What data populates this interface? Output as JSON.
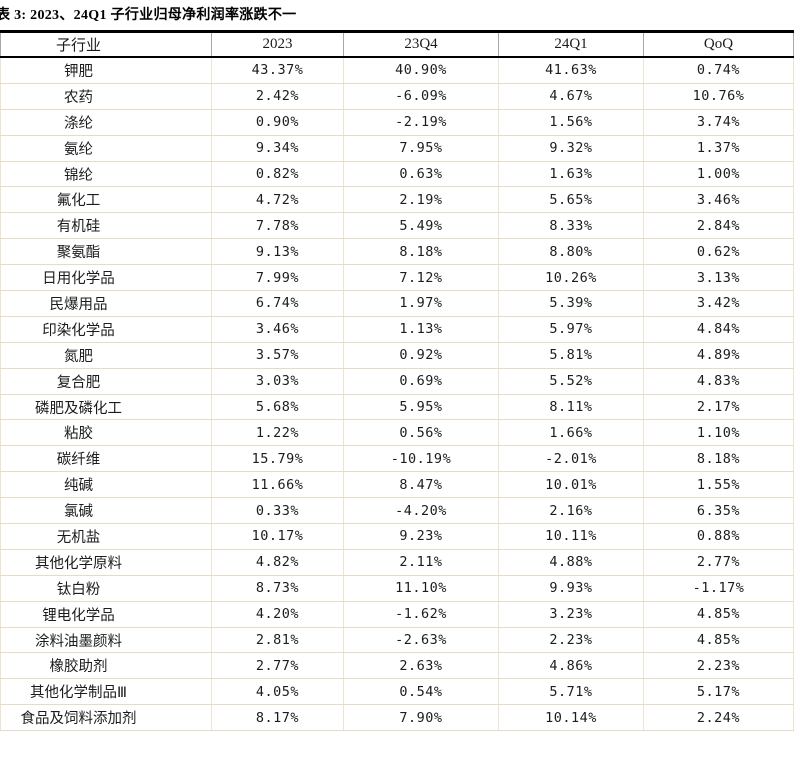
{
  "title": "表 3: 2023、24Q1 子行业归母净利润率涨跌不一",
  "colors": {
    "heavy_border": "#000000",
    "row_divider": "#e6dcc5",
    "column_divider": "#ece3d0",
    "text": "#1c1c1c"
  },
  "table": {
    "columns": [
      "子行业",
      "2023",
      "23Q4",
      "24Q1",
      "QoQ"
    ],
    "rows": [
      [
        "钾肥",
        "43.37%",
        "40.90%",
        "41.63%",
        "0.74%"
      ],
      [
        "农药",
        "2.42%",
        "-6.09%",
        "4.67%",
        "10.76%"
      ],
      [
        "涤纶",
        "0.90%",
        "-2.19%",
        "1.56%",
        "3.74%"
      ],
      [
        "氨纶",
        "9.34%",
        "7.95%",
        "9.32%",
        "1.37%"
      ],
      [
        "锦纶",
        "0.82%",
        "0.63%",
        "1.63%",
        "1.00%"
      ],
      [
        "氟化工",
        "4.72%",
        "2.19%",
        "5.65%",
        "3.46%"
      ],
      [
        "有机硅",
        "7.78%",
        "5.49%",
        "8.33%",
        "2.84%"
      ],
      [
        "聚氨酯",
        "9.13%",
        "8.18%",
        "8.80%",
        "0.62%"
      ],
      [
        "日用化学品",
        "7.99%",
        "7.12%",
        "10.26%",
        "3.13%"
      ],
      [
        "民爆用品",
        "6.74%",
        "1.97%",
        "5.39%",
        "3.42%"
      ],
      [
        "印染化学品",
        "3.46%",
        "1.13%",
        "5.97%",
        "4.84%"
      ],
      [
        "氮肥",
        "3.57%",
        "0.92%",
        "5.81%",
        "4.89%"
      ],
      [
        "复合肥",
        "3.03%",
        "0.69%",
        "5.52%",
        "4.83%"
      ],
      [
        "磷肥及磷化工",
        "5.68%",
        "5.95%",
        "8.11%",
        "2.17%"
      ],
      [
        "粘胶",
        "1.22%",
        "0.56%",
        "1.66%",
        "1.10%"
      ],
      [
        "碳纤维",
        "15.79%",
        "-10.19%",
        "-2.01%",
        "8.18%"
      ],
      [
        "纯碱",
        "11.66%",
        "8.47%",
        "10.01%",
        "1.55%"
      ],
      [
        "氯碱",
        "0.33%",
        "-4.20%",
        "2.16%",
        "6.35%"
      ],
      [
        "无机盐",
        "10.17%",
        "9.23%",
        "10.11%",
        "0.88%"
      ],
      [
        "其他化学原料",
        "4.82%",
        "2.11%",
        "4.88%",
        "2.77%"
      ],
      [
        "钛白粉",
        "8.73%",
        "11.10%",
        "9.93%",
        "-1.17%"
      ],
      [
        "锂电化学品",
        "4.20%",
        "-1.62%",
        "3.23%",
        "4.85%"
      ],
      [
        "涂料油墨颜料",
        "2.81%",
        "-2.63%",
        "2.23%",
        "4.85%"
      ],
      [
        "橡胶助剂",
        "2.77%",
        "2.63%",
        "4.86%",
        "2.23%"
      ],
      [
        "其他化学制品Ⅲ",
        "4.05%",
        "0.54%",
        "5.71%",
        "5.17%"
      ],
      [
        "食品及饲料添加剂",
        "8.17%",
        "7.90%",
        "10.14%",
        "2.24%"
      ]
    ]
  }
}
